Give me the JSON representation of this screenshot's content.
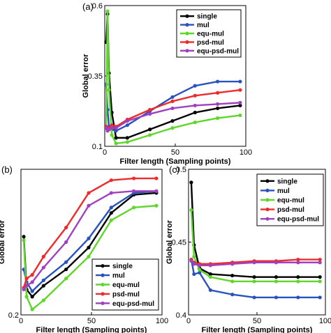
{
  "chart_data": [
    {
      "type": "line",
      "panel_label": "(a)",
      "xlabel": "Filter length (Sampling points)",
      "ylabel": "Global error",
      "xlim": [
        0,
        100
      ],
      "ylim": [
        0.1,
        0.6
      ],
      "xticks": [
        0,
        50,
        100
      ],
      "yticks": [
        0.1,
        0.35,
        0.6
      ],
      "legend_position": "top-right",
      "series": [
        {
          "name": "single",
          "color": "#000000",
          "x": [
            1,
            2,
            3,
            5,
            8,
            16,
            32,
            48,
            64,
            80,
            96
          ],
          "y": [
            0.47,
            0.57,
            0.36,
            0.22,
            0.13,
            0.13,
            0.16,
            0.19,
            0.22,
            0.235,
            0.245
          ]
        },
        {
          "name": "mul",
          "color": "#2a52be",
          "x": [
            1,
            2,
            3,
            5,
            8,
            16,
            32,
            48,
            64,
            80,
            96
          ],
          "y": [
            0.32,
            0.23,
            0.17,
            0.16,
            0.155,
            0.175,
            0.225,
            0.275,
            0.315,
            0.33,
            0.33
          ]
        },
        {
          "name": "equ-mul",
          "color": "#5fd62b",
          "x": [
            1,
            2,
            3,
            5,
            8,
            16,
            32,
            48,
            64,
            80,
            96
          ],
          "y": [
            0.17,
            0.58,
            0.3,
            0.14,
            0.11,
            0.115,
            0.14,
            0.165,
            0.185,
            0.2,
            0.21
          ]
        },
        {
          "name": "psd-mul",
          "color": "#ee2a2a",
          "x": [
            1,
            2,
            3,
            5,
            8,
            16,
            32,
            48,
            64,
            80,
            96
          ],
          "y": [
            0.17,
            0.16,
            0.165,
            0.175,
            0.17,
            0.195,
            0.23,
            0.26,
            0.28,
            0.29,
            0.3
          ]
        },
        {
          "name": "equ-psd-mul",
          "color": "#a040c0",
          "x": [
            1,
            2,
            3,
            5,
            8,
            16,
            32,
            48,
            64,
            80,
            96
          ],
          "y": [
            0.165,
            0.155,
            0.16,
            0.165,
            0.165,
            0.19,
            0.215,
            0.235,
            0.245,
            0.25,
            0.255
          ]
        }
      ]
    },
    {
      "type": "line",
      "panel_label": "(b)",
      "xlabel": "Filter length (Sampling points)",
      "ylabel": "Global error",
      "xlim": [
        0,
        100
      ],
      "ylim": [
        0.2,
        1.0
      ],
      "xticks": [
        0,
        50,
        100
      ],
      "yticks": [
        0.2
      ],
      "legend_position": "bottom-right",
      "series": [
        {
          "name": "single",
          "color": "#000000",
          "x": [
            2,
            4,
            8,
            16,
            32,
            48,
            64,
            80,
            96
          ],
          "y": [
            0.63,
            0.34,
            0.3,
            0.36,
            0.45,
            0.57,
            0.76,
            0.86,
            0.87
          ]
        },
        {
          "name": "mul",
          "color": "#2a52be",
          "x": [
            2,
            4,
            8,
            16,
            32,
            48,
            64,
            80,
            96
          ],
          "y": [
            0.45,
            0.38,
            0.33,
            0.39,
            0.49,
            0.62,
            0.79,
            0.87,
            0.88
          ]
        },
        {
          "name": "equ-mul",
          "color": "#5fd62b",
          "x": [
            2,
            4,
            8,
            16,
            32,
            48,
            64,
            80,
            96
          ],
          "y": [
            0.61,
            0.3,
            0.23,
            0.28,
            0.4,
            0.52,
            0.72,
            0.79,
            0.8
          ]
        },
        {
          "name": "psd-mul",
          "color": "#ee2a2a",
          "x": [
            2,
            4,
            8,
            16,
            32,
            48,
            64,
            80,
            96
          ],
          "y": [
            0.35,
            0.4,
            0.42,
            0.52,
            0.68,
            0.87,
            0.94,
            0.95,
            0.95
          ]
        },
        {
          "name": "equ-psd-mul",
          "color": "#a040c0",
          "x": [
            2,
            4,
            8,
            16,
            32,
            48,
            64,
            80,
            96
          ],
          "y": [
            0.34,
            0.36,
            0.38,
            0.46,
            0.6,
            0.8,
            0.87,
            0.88,
            0.88
          ]
        }
      ]
    },
    {
      "type": "line",
      "panel_label": "(c)",
      "xlabel": "Filter length (Sampling points)",
      "ylabel": "Global error",
      "xlim": [
        0,
        100
      ],
      "ylim": [
        0.4,
        0.5
      ],
      "xticks": [
        0,
        50,
        100
      ],
      "yticks": [
        0.4,
        0.45,
        0.5
      ],
      "legend_position": "top-right",
      "series": [
        {
          "name": "single",
          "color": "#000000",
          "x": [
            2,
            4,
            8,
            16,
            32,
            48,
            64,
            80,
            96
          ],
          "y": [
            0.491,
            0.448,
            0.432,
            0.428,
            0.427,
            0.426,
            0.426,
            0.426,
            0.426
          ]
        },
        {
          "name": "mul",
          "color": "#2a52be",
          "x": [
            2,
            4,
            8,
            16,
            32,
            48,
            64,
            80,
            96
          ],
          "y": [
            0.438,
            0.428,
            0.429,
            0.417,
            0.414,
            0.412,
            0.412,
            0.412,
            0.412
          ]
        },
        {
          "name": "equ-mul",
          "color": "#5fd62b",
          "x": [
            2,
            4,
            8,
            16,
            32,
            48,
            64,
            80,
            96
          ],
          "y": [
            0.472,
            0.44,
            0.431,
            0.426,
            0.423,
            0.423,
            0.423,
            0.423,
            0.423
          ]
        },
        {
          "name": "psd-mul",
          "color": "#ee2a2a",
          "x": [
            2,
            4,
            8,
            16,
            32,
            48,
            64,
            80,
            96
          ],
          "y": [
            0.438,
            0.436,
            0.435,
            0.435,
            0.436,
            0.437,
            0.437,
            0.438,
            0.438
          ]
        },
        {
          "name": "equ-psd-mul",
          "color": "#a040c0",
          "x": [
            2,
            4,
            8,
            16,
            32,
            48,
            64,
            80,
            96
          ],
          "y": [
            0.437,
            0.435,
            0.434,
            0.434,
            0.435,
            0.436,
            0.436,
            0.436,
            0.436
          ]
        }
      ]
    }
  ]
}
